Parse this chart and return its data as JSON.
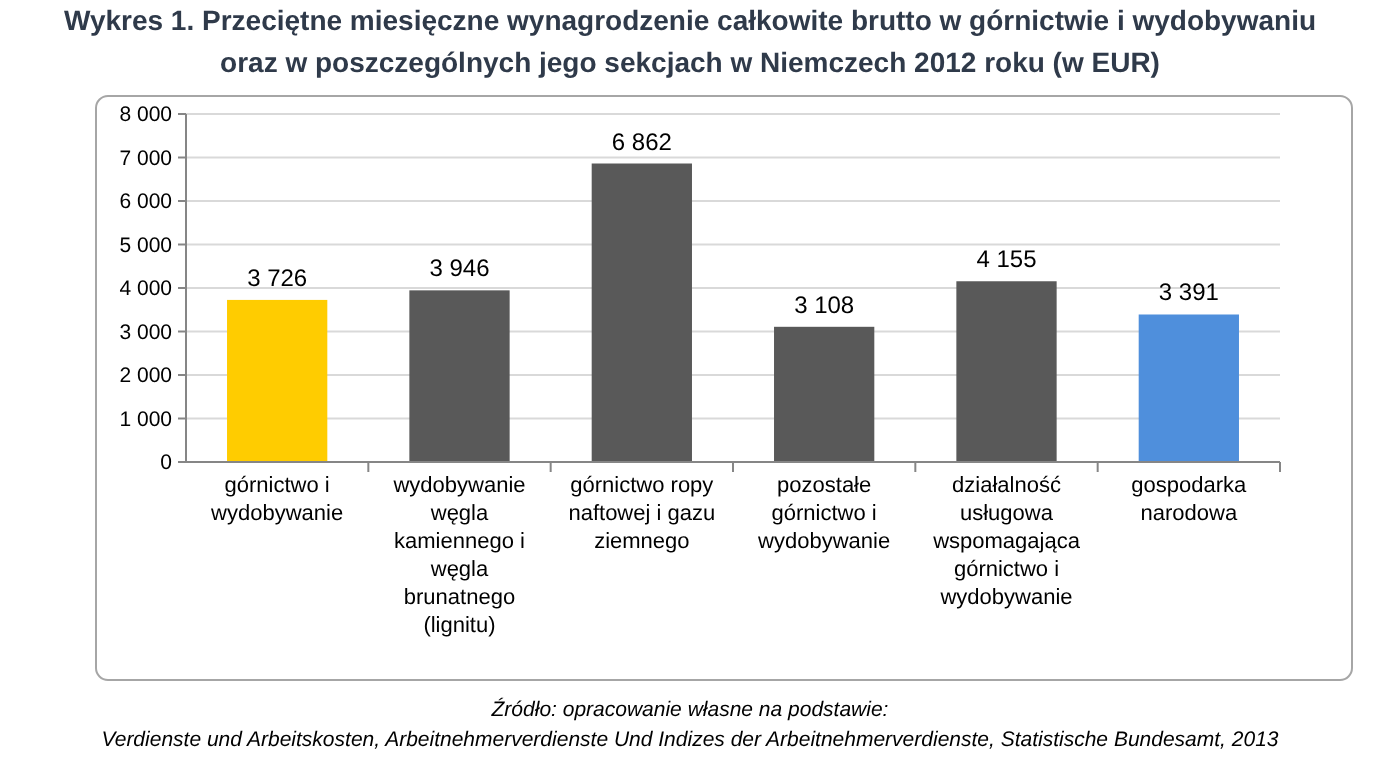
{
  "chart_data": {
    "type": "bar",
    "title": "Wykres 1. Przeciętne miesięczne wynagrodzenie całkowite brutto w górnictwie i wydobywaniu oraz w poszczególnych jego sekcjach w Niemczech 2012 roku (w EUR)",
    "categories": [
      "górnictwo i wydobywanie",
      "wydobywanie węgla kamiennego i węgla brunatnego (lignitu)",
      "górnictwo ropy naftowej i gazu ziemnego",
      "pozostałe górnictwo i wydobywanie",
      "działalność usługowa wspomagająca górnictwo i wydobywanie",
      "gospodarka narodowa"
    ],
    "values": [
      3726,
      3946,
      6862,
      3108,
      4155,
      3391
    ],
    "colors": [
      "#ffcc00",
      "#595959",
      "#595959",
      "#595959",
      "#595959",
      "#4f8fdc"
    ],
    "value_labels": [
      "3 726",
      "3 946",
      "6 862",
      "3 108",
      "4 155",
      "3 391"
    ],
    "ylim": [
      0,
      8000
    ],
    "yticks": [
      {
        "value": 0,
        "label": "0"
      },
      {
        "value": 1000,
        "label": "1 000"
      },
      {
        "value": 2000,
        "label": "2 000"
      },
      {
        "value": 3000,
        "label": "3 000"
      },
      {
        "value": 4000,
        "label": "4 000"
      },
      {
        "value": 5000,
        "label": "5 000"
      },
      {
        "value": 6000,
        "label": "6 000"
      },
      {
        "value": 7000,
        "label": "7 000"
      },
      {
        "value": 8000,
        "label": "8 000"
      }
    ],
    "grid": "y",
    "annotations": [
      "Źródło: opracowanie własne na podstawie:",
      "Verdienste und Arbeitskosten, Arbeitnehmerverdienste Und Indizes der Arbeitnehmerverdienste, Statistische Bundesamt, 2013"
    ]
  }
}
